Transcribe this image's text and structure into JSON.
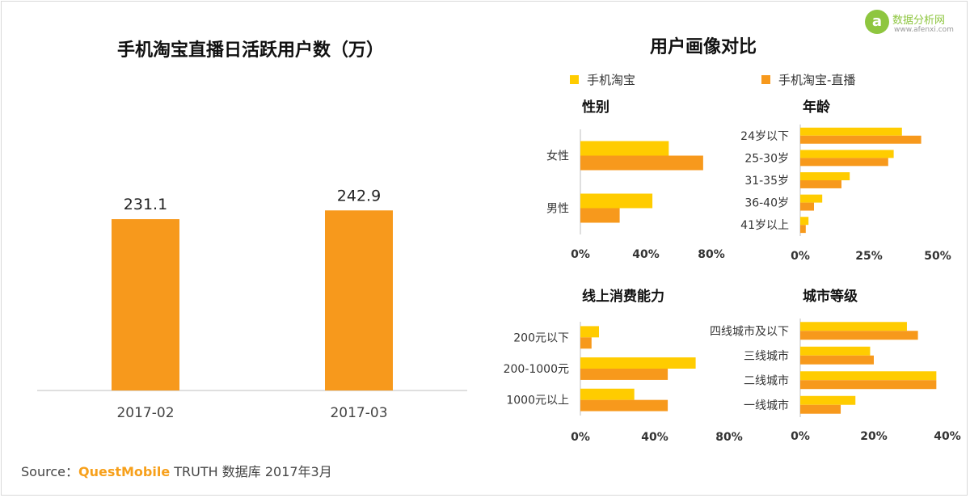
{
  "colors": {
    "series1": "#ffcc00",
    "series2": "#f7991c",
    "axis": "#bfbfbf",
    "brand": "#f7a01b"
  },
  "watermark": {
    "text": "数据分析网",
    "sub": "www.afenxi.com",
    "icon": "a"
  },
  "left": {
    "title": "手机淘宝直播日活跃用户数（万）"
  },
  "right": {
    "title": "用户画像对比"
  },
  "legend": {
    "series1": "手机淘宝",
    "series2": "手机淘宝-直播"
  },
  "chart_data": [
    {
      "type": "bar",
      "title": "手机淘宝直播日活跃用户数（万）",
      "categories": [
        "2017-02",
        "2017-03"
      ],
      "values": [
        231.1,
        242.9
      ],
      "data_labels": [
        "231.1",
        "242.9"
      ],
      "xlabel": "",
      "ylabel": "",
      "grid": false
    },
    {
      "type": "bar",
      "orientation": "horizontal",
      "title": "性别",
      "categories": [
        "女性",
        "男性"
      ],
      "series": [
        {
          "name": "手机淘宝",
          "values": [
            54,
            44
          ]
        },
        {
          "name": "手机淘宝-直播",
          "values": [
            75,
            24
          ]
        }
      ],
      "xlim": [
        0,
        80
      ],
      "xticks": [
        "0%",
        "40%",
        "80%"
      ]
    },
    {
      "type": "bar",
      "orientation": "horizontal",
      "title": "年龄",
      "categories": [
        "24岁以下",
        "25-30岁",
        "31-35岁",
        "36-40岁",
        "41岁以上"
      ],
      "series": [
        {
          "name": "手机淘宝",
          "values": [
            37,
            34,
            18,
            8,
            3
          ]
        },
        {
          "name": "手机淘宝-直播",
          "values": [
            44,
            32,
            15,
            5,
            2
          ]
        }
      ],
      "xlim": [
        0,
        50
      ],
      "xticks": [
        "0%",
        "25%",
        "50%"
      ]
    },
    {
      "type": "bar",
      "orientation": "horizontal",
      "title": "线上消费能力",
      "categories": [
        "200元以下",
        "200-1000元",
        "1000元以上"
      ],
      "series": [
        {
          "name": "手机淘宝",
          "values": [
            10,
            62,
            29
          ]
        },
        {
          "name": "手机淘宝-直播",
          "values": [
            6,
            47,
            47
          ]
        }
      ],
      "xlim": [
        0,
        80
      ],
      "xticks": [
        "0%",
        "40%",
        "80%"
      ]
    },
    {
      "type": "bar",
      "orientation": "horizontal",
      "title": "城市等级",
      "categories": [
        "四线城市及以下",
        "三线城市",
        "二线城市",
        "一线城市"
      ],
      "series": [
        {
          "name": "手机淘宝",
          "values": [
            29,
            19,
            37,
            15
          ]
        },
        {
          "name": "手机淘宝-直播",
          "values": [
            32,
            20,
            37,
            11
          ]
        }
      ],
      "xlim": [
        0,
        40
      ],
      "xticks": [
        "0%",
        "20%",
        "40%"
      ]
    }
  ],
  "source": {
    "label": "Source：",
    "brand": "QuestMobile",
    "rest": " TRUTH 数据库 2017年3月"
  }
}
